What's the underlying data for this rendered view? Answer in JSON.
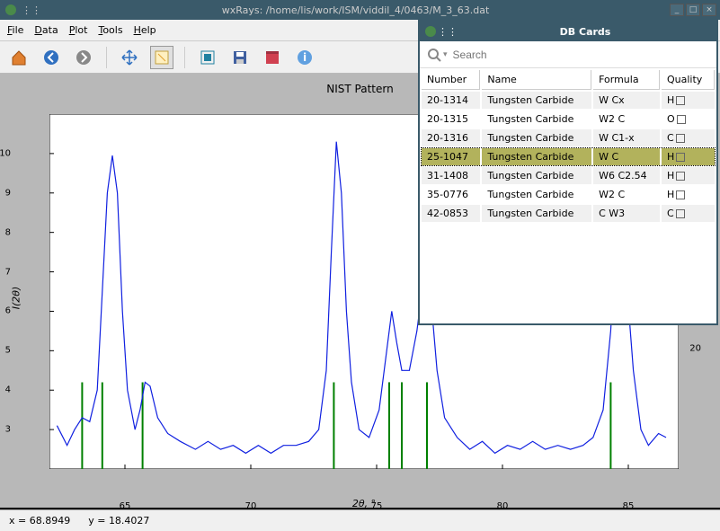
{
  "main_window": {
    "title": "wxRays: /home/lis/work/ISM/viddil_4/0463/M_3_63.dat",
    "menus": [
      "File",
      "Data",
      "Plot",
      "Tools",
      "Help"
    ]
  },
  "toolbar": {
    "items": [
      "home",
      "back",
      "forward",
      "sep",
      "pan",
      "zoom",
      "sep",
      "configure",
      "save",
      "grid",
      "info"
    ]
  },
  "chart": {
    "title": "NIST Pattern",
    "xlabel": "2θ, °",
    "ylabel": "I(2θ)",
    "xlim": [
      62,
      87
    ],
    "ylim": [
      2,
      11
    ],
    "xticks": [
      65,
      70,
      75,
      80,
      85
    ],
    "yticks": [
      3,
      4,
      5,
      6,
      7,
      8,
      9,
      10
    ],
    "secondary_ytick": {
      "pos": 0.34,
      "label": "20"
    },
    "line_color": "#1020e0",
    "marker_color": "#008000",
    "background": "#ffffff",
    "outer_background": "#b8b8b8",
    "markers_x": [
      63.3,
      64.1,
      65.7,
      73.3,
      75.5,
      76.0,
      77.0,
      84.3
    ],
    "series": [
      [
        62.3,
        3.1
      ],
      [
        62.7,
        2.6
      ],
      [
        63.0,
        3.0
      ],
      [
        63.3,
        3.3
      ],
      [
        63.6,
        3.2
      ],
      [
        63.9,
        4.0
      ],
      [
        64.1,
        6.5
      ],
      [
        64.3,
        9.0
      ],
      [
        64.5,
        9.95
      ],
      [
        64.7,
        9.0
      ],
      [
        64.9,
        6.0
      ],
      [
        65.1,
        4.0
      ],
      [
        65.4,
        3.0
      ],
      [
        65.6,
        3.5
      ],
      [
        65.8,
        4.2
      ],
      [
        66.0,
        4.1
      ],
      [
        66.3,
        3.3
      ],
      [
        66.7,
        2.9
      ],
      [
        67.2,
        2.7
      ],
      [
        67.8,
        2.5
      ],
      [
        68.3,
        2.7
      ],
      [
        68.8,
        2.5
      ],
      [
        69.3,
        2.6
      ],
      [
        69.8,
        2.4
      ],
      [
        70.3,
        2.6
      ],
      [
        70.8,
        2.4
      ],
      [
        71.3,
        2.6
      ],
      [
        71.8,
        2.6
      ],
      [
        72.3,
        2.7
      ],
      [
        72.7,
        3.0
      ],
      [
        73.0,
        4.5
      ],
      [
        73.2,
        7.5
      ],
      [
        73.4,
        10.3
      ],
      [
        73.6,
        9.0
      ],
      [
        73.8,
        6.0
      ],
      [
        74.0,
        4.2
      ],
      [
        74.3,
        3.0
      ],
      [
        74.7,
        2.8
      ],
      [
        75.1,
        3.5
      ],
      [
        75.4,
        5.0
      ],
      [
        75.6,
        6.0
      ],
      [
        75.8,
        5.2
      ],
      [
        76.0,
        4.5
      ],
      [
        76.3,
        4.5
      ],
      [
        76.6,
        5.5
      ],
      [
        76.8,
        6.5
      ],
      [
        77.0,
        6.9
      ],
      [
        77.2,
        6.0
      ],
      [
        77.4,
        4.5
      ],
      [
        77.7,
        3.3
      ],
      [
        78.2,
        2.8
      ],
      [
        78.7,
        2.5
      ],
      [
        79.2,
        2.7
      ],
      [
        79.7,
        2.4
      ],
      [
        80.2,
        2.6
      ],
      [
        80.7,
        2.5
      ],
      [
        81.2,
        2.7
      ],
      [
        81.7,
        2.5
      ],
      [
        82.2,
        2.6
      ],
      [
        82.7,
        2.5
      ],
      [
        83.2,
        2.6
      ],
      [
        83.6,
        2.8
      ],
      [
        84.0,
        3.5
      ],
      [
        84.3,
        5.5
      ],
      [
        84.5,
        7.8
      ],
      [
        84.7,
        8.5
      ],
      [
        84.9,
        7.0
      ],
      [
        85.2,
        4.5
      ],
      [
        85.5,
        3.0
      ],
      [
        85.8,
        2.6
      ],
      [
        86.2,
        2.9
      ],
      [
        86.5,
        2.8
      ]
    ]
  },
  "statusbar": {
    "x": "x = 68.8949",
    "y": "y = 18.4027"
  },
  "db_window": {
    "title": "DB Cards",
    "search_placeholder": "Search",
    "columns": [
      "Number",
      "Name",
      "Formula",
      "Quality"
    ],
    "rows": [
      {
        "number": "20-1314",
        "name": "Tungsten Carbide",
        "formula": "W Cx",
        "quality": "H"
      },
      {
        "number": "20-1315",
        "name": "Tungsten Carbide",
        "formula": "W2 C",
        "quality": "O"
      },
      {
        "number": "20-1316",
        "name": "Tungsten Carbide",
        "formula": "W C1-x",
        "quality": "C"
      },
      {
        "number": "25-1047",
        "name": "Tungsten Carbide",
        "formula": "W C",
        "quality": "H",
        "selected": true
      },
      {
        "number": "31-1408",
        "name": "Tungsten Carbide",
        "formula": "W6 C2.54",
        "quality": "H"
      },
      {
        "number": "35-0776",
        "name": "Tungsten Carbide",
        "formula": "W2 C",
        "quality": "H"
      },
      {
        "number": "42-0853",
        "name": "Tungsten Carbide",
        "formula": "C W3",
        "quality": "C"
      }
    ]
  }
}
